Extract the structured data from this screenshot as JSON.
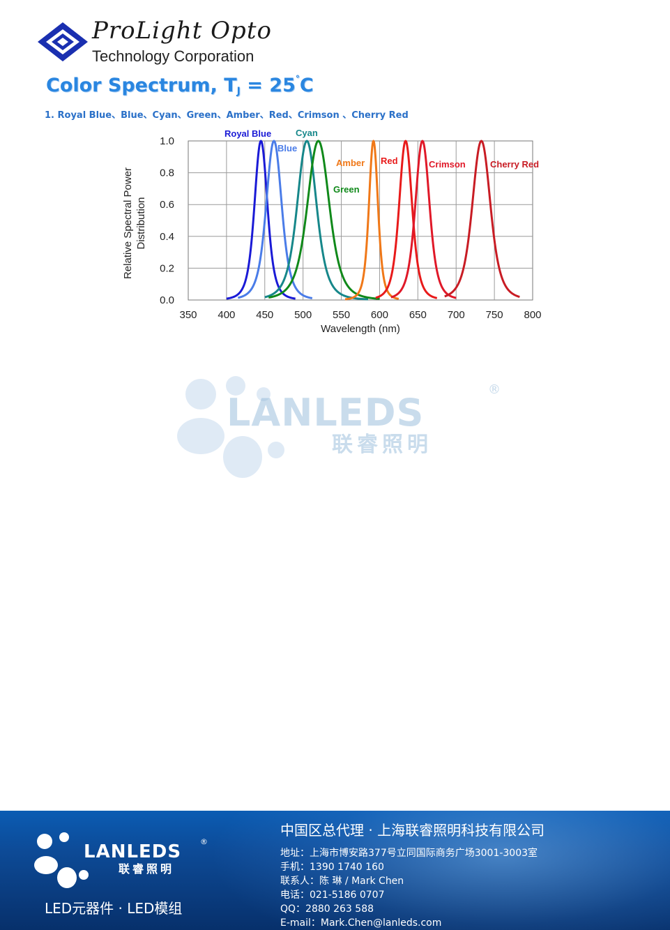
{
  "header": {
    "brand_script": "ProLight Opto",
    "brand_sub": "Technology Corporation",
    "title_main": "Color Spectrum, T",
    "title_sub": "J",
    "title_after": " = 25",
    "title_sup": "°",
    "title_end": "C",
    "subtitle": "1. Royal Blue、Blue、Cyan、Green、Amber、Red、Crimson 、Cherry Red"
  },
  "chart_data": {
    "type": "line",
    "title": "",
    "xlabel": "Wavelength (nm)",
    "ylabel": "Relative Spectral Power Distribution",
    "ylabel_lines": [
      "Relative Spectral Power",
      "Distribution"
    ],
    "xlim": [
      350,
      800
    ],
    "ylim": [
      0,
      1.0
    ],
    "xticks": [
      "350",
      "400",
      "450",
      "500",
      "550",
      "600",
      "650",
      "700",
      "750",
      "800"
    ],
    "yticks": [
      "0.0",
      "0.2",
      "0.4",
      "0.6",
      "0.8",
      "1.0"
    ],
    "grid": true,
    "series": [
      {
        "name": "Royal Blue",
        "color": "#1a1ad6",
        "peak": 445,
        "fwhm": 20,
        "range": [
          400,
          490
        ]
      },
      {
        "name": "Blue",
        "color": "#4a7ce8",
        "peak": 462,
        "fwhm": 24,
        "range": [
          415,
          512
        ]
      },
      {
        "name": "Cyan",
        "color": "#16878a",
        "peak": 505,
        "fwhm": 30,
        "range": [
          450,
          585
        ]
      },
      {
        "name": "Green",
        "color": "#10891a",
        "peak": 520,
        "fwhm": 34,
        "range": [
          455,
          600
        ]
      },
      {
        "name": "Amber",
        "color": "#f07818",
        "peak": 592,
        "fwhm": 14,
        "range": [
          555,
          625
        ]
      },
      {
        "name": "Red",
        "color": "#e81a1a",
        "peak": 634,
        "fwhm": 20,
        "range": [
          595,
          675
        ]
      },
      {
        "name": "Crimson",
        "color": "#e01828",
        "peak": 656,
        "fwhm": 22,
        "range": [
          615,
          700
        ]
      },
      {
        "name": "Cherry Red",
        "color": "#c81c24",
        "peak": 733,
        "fwhm": 28,
        "range": [
          685,
          783
        ]
      }
    ]
  },
  "watermark": {
    "brand": "LANLEDS",
    "brand_cn": "联睿照明",
    "reg": "®"
  },
  "footer": {
    "brand": "LANLEDS",
    "brand_cn": "联睿照明",
    "reg": "®",
    "tagline": "LED元器件 · LED模组",
    "company": "中国区总代理 · 上海联睿照明科技有限公司",
    "address": "地址：上海市博安路377号立同国际商务广场3001-3003室",
    "mobile": "手机：1390 1740 160",
    "contact": "联系人：陈 琳 / Mark Chen",
    "phone": "电话：021-5186 0707",
    "qq": "QQ：2880 263 588",
    "email": "E-mail：Mark.Chen@lanleds.com"
  }
}
